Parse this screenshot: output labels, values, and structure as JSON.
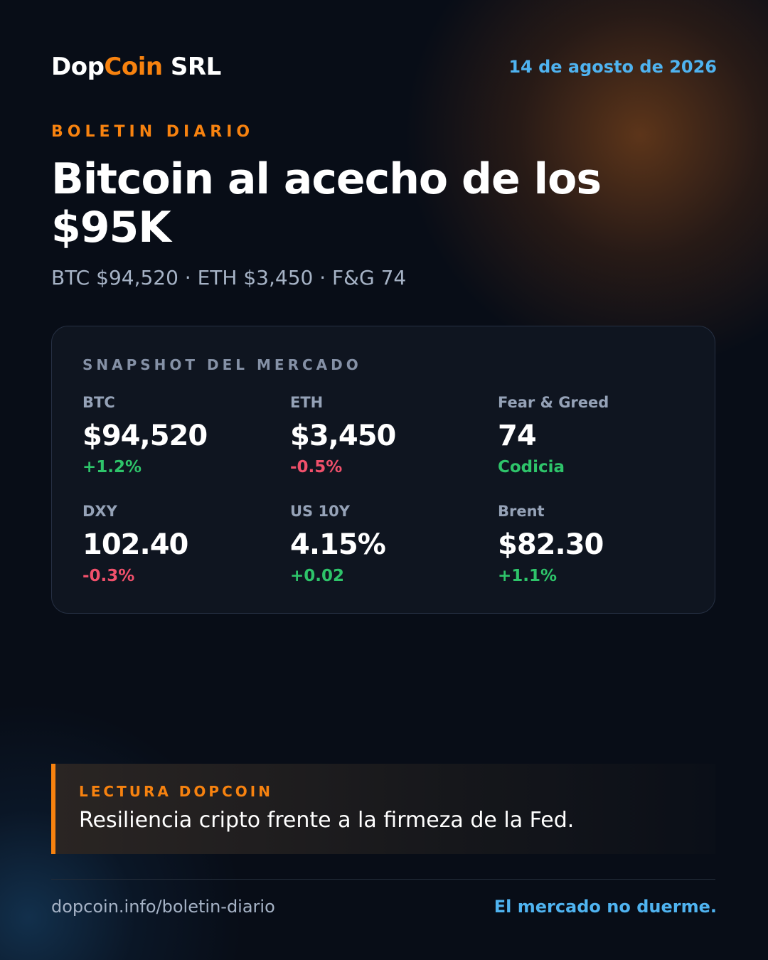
{
  "header": {
    "brand_part1": "Dop",
    "brand_part2": "Coin",
    "brand_part3": " SRL",
    "date": "14 de agosto de 2026"
  },
  "hero": {
    "kicker": "BOLETIN DIARIO",
    "headline": "Bitcoin al acecho de los $95K",
    "ticker_line": "BTC $94,520 · ETH $3,450 · F&G 74"
  },
  "snapshot": {
    "title": "SNAPSHOT DEL MERCADO",
    "metrics": [
      {
        "label": "BTC",
        "value": "$94,520",
        "change": "+1.2%",
        "direction": "up"
      },
      {
        "label": "ETH",
        "value": "$3,450",
        "change": "-0.5%",
        "direction": "down"
      },
      {
        "label": "Fear & Greed",
        "value": "74",
        "change": "Codicia",
        "direction": "up"
      },
      {
        "label": "DXY",
        "value": "102.40",
        "change": "-0.3%",
        "direction": "down"
      },
      {
        "label": "US 10Y",
        "value": "4.15%",
        "change": "+0.02",
        "direction": "up"
      },
      {
        "label": "Brent",
        "value": "$82.30",
        "change": "+1.1%",
        "direction": "up"
      }
    ]
  },
  "callout": {
    "kicker": "LECTURA DOPCOIN",
    "text": "Resiliencia cripto frente a la firmeza de la Fed."
  },
  "footer": {
    "url": "dopcoin.info/boletin-diario",
    "tagline": "El mercado no duerme."
  },
  "colors": {
    "accent_orange": "#f7820f",
    "accent_blue": "#4fb3f0",
    "positive_green": "#2ec46a",
    "negative_red": "#f0506b",
    "background": "#080d17",
    "card_background": "#0f1520"
  }
}
